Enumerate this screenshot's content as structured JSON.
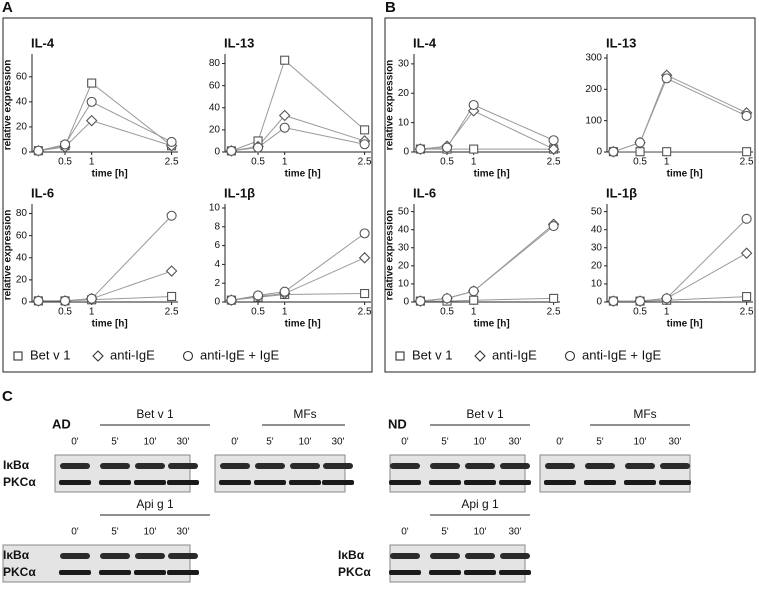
{
  "panels": {
    "labels": [
      "A",
      "B",
      "C"
    ]
  },
  "chart_data": [
    {
      "type": "line",
      "title": "IL-4",
      "ylabel": "relative expression",
      "xlabel": "time [h]",
      "x": [
        0,
        0.5,
        1,
        2.5
      ],
      "xlim": [
        -0.12,
        2.62
      ],
      "xticks": [
        0.5,
        1,
        2.5
      ],
      "ylim": [
        0,
        75
      ],
      "yticks": [
        0,
        20,
        40,
        60
      ],
      "series": [
        {
          "name": "Bet v 1",
          "marker": "square",
          "color": "#555555",
          "values": [
            1,
            5,
            55,
            5
          ]
        },
        {
          "name": "anti-IgE",
          "marker": "diamond",
          "color": "#555555",
          "values": [
            1,
            4,
            25,
            5
          ]
        },
        {
          "name": "anti-IgE + IgE",
          "marker": "circle",
          "color": "#555555",
          "values": [
            1,
            6,
            40,
            8
          ]
        }
      ]
    },
    {
      "type": "line",
      "title": "IL-13",
      "xlabel": "time [h]",
      "x": [
        0,
        0.5,
        1,
        2.5
      ],
      "xlim": [
        -0.12,
        2.62
      ],
      "xticks": [
        0.5,
        1,
        2.5
      ],
      "ylim": [
        0,
        85
      ],
      "yticks": [
        0,
        20,
        40,
        60,
        80
      ],
      "series": [
        {
          "name": "Bet v 1",
          "marker": "square",
          "color": "#555555",
          "values": [
            1,
            10,
            83,
            20
          ]
        },
        {
          "name": "anti-IgE",
          "marker": "diamond",
          "color": "#555555",
          "values": [
            1,
            5,
            33,
            10
          ]
        },
        {
          "name": "anti-IgE + IgE",
          "marker": "circle",
          "color": "#555555",
          "values": [
            1,
            4,
            22,
            7
          ]
        }
      ]
    },
    {
      "type": "line",
      "title": "IL-6",
      "ylabel": "relative expression",
      "xlabel": "time [h]",
      "x": [
        0,
        0.5,
        1,
        2.5
      ],
      "xlim": [
        -0.12,
        2.62
      ],
      "xticks": [
        0.5,
        1,
        2.5
      ],
      "ylim": [
        0,
        85
      ],
      "yticks": [
        0,
        20,
        40,
        60,
        80
      ],
      "series": [
        {
          "name": "Bet v 1",
          "marker": "square",
          "color": "#555555",
          "values": [
            1,
            1,
            2,
            5
          ]
        },
        {
          "name": "anti-IgE",
          "marker": "diamond",
          "color": "#555555",
          "values": [
            1,
            1,
            3,
            28
          ]
        },
        {
          "name": "anti-IgE + IgE",
          "marker": "circle",
          "color": "#555555",
          "values": [
            1,
            1,
            3,
            78
          ]
        }
      ]
    },
    {
      "type": "line",
      "title": "IL-1β",
      "xlabel": "time [h]",
      "x": [
        0,
        0.5,
        1,
        2.5
      ],
      "xlim": [
        -0.12,
        2.62
      ],
      "xticks": [
        0.5,
        1,
        2.5
      ],
      "ylim": [
        0,
        10
      ],
      "yticks": [
        0,
        2,
        4,
        6,
        8,
        10
      ],
      "series": [
        {
          "name": "Bet v 1",
          "marker": "square",
          "color": "#555555",
          "values": [
            0.2,
            0.5,
            0.8,
            0.9
          ]
        },
        {
          "name": "anti-IgE",
          "marker": "diamond",
          "color": "#555555",
          "values": [
            0.2,
            0.6,
            0.9,
            4.7
          ]
        },
        {
          "name": "anti-IgE + IgE",
          "marker": "circle",
          "color": "#555555",
          "values": [
            0.2,
            0.7,
            1.1,
            7.3
          ]
        }
      ]
    },
    {
      "type": "line",
      "title": "IL-4",
      "ylabel": "relative expression",
      "xlabel": "time [h]",
      "x": [
        0,
        0.5,
        1,
        2.5
      ],
      "xlim": [
        -0.12,
        2.62
      ],
      "xticks": [
        0.5,
        1,
        2.5
      ],
      "ylim": [
        0,
        32
      ],
      "yticks": [
        0,
        10,
        20,
        30
      ],
      "series": [
        {
          "name": "Bet v 1",
          "marker": "square",
          "color": "#555555",
          "values": [
            1,
            1,
            1,
            1
          ]
        },
        {
          "name": "anti-IgE",
          "marker": "diamond",
          "color": "#555555",
          "values": [
            1,
            2,
            14,
            1
          ]
        },
        {
          "name": "anti-IgE + IgE",
          "marker": "circle",
          "color": "#555555",
          "values": [
            1,
            1.5,
            16,
            4
          ]
        }
      ]
    },
    {
      "type": "line",
      "title": "IL-13",
      "xlabel": "time [h]",
      "x": [
        0,
        0.5,
        1,
        2.5
      ],
      "xlim": [
        -0.12,
        2.62
      ],
      "xticks": [
        0.5,
        1,
        2.5
      ],
      "ylim": [
        0,
        300
      ],
      "yticks": [
        0,
        100,
        200,
        300
      ],
      "series": [
        {
          "name": "Bet v 1",
          "marker": "square",
          "color": "#555555",
          "values": [
            1,
            1,
            1,
            1
          ]
        },
        {
          "name": "anti-IgE",
          "marker": "diamond",
          "color": "#555555",
          "values": [
            1,
            30,
            245,
            125
          ]
        },
        {
          "name": "anti-IgE + IgE",
          "marker": "circle",
          "color": "#555555",
          "values": [
            1,
            30,
            235,
            115
          ]
        }
      ]
    },
    {
      "type": "line",
      "title": "IL-6",
      "ylabel": "relative expression",
      "xlabel": "time [h]",
      "x": [
        0,
        0.5,
        1,
        2.5
      ],
      "xlim": [
        -0.12,
        2.62
      ],
      "xticks": [
        0.5,
        1,
        2.5
      ],
      "ylim": [
        0,
        52
      ],
      "yticks": [
        0,
        10,
        20,
        30,
        40,
        50
      ],
      "series": [
        {
          "name": "Bet v 1",
          "marker": "square",
          "color": "#555555",
          "values": [
            0.5,
            0.5,
            1,
            2
          ]
        },
        {
          "name": "anti-IgE",
          "marker": "diamond",
          "color": "#555555",
          "values": [
            0.5,
            2,
            6,
            43
          ]
        },
        {
          "name": "anti-IgE + IgE",
          "marker": "circle",
          "color": "#555555",
          "values": [
            0.5,
            2,
            6,
            42
          ]
        }
      ]
    },
    {
      "type": "line",
      "title": "IL-1β",
      "xlabel": "time [h]",
      "x": [
        0,
        0.5,
        1,
        2.5
      ],
      "xlim": [
        -0.12,
        2.62
      ],
      "xticks": [
        0.5,
        1,
        2.5
      ],
      "ylim": [
        0,
        52
      ],
      "yticks": [
        0,
        10,
        20,
        30,
        40,
        50
      ],
      "series": [
        {
          "name": "Bet v 1",
          "marker": "square",
          "color": "#555555",
          "values": [
            0.5,
            0.5,
            1,
            3
          ]
        },
        {
          "name": "anti-IgE",
          "marker": "diamond",
          "color": "#555555",
          "values": [
            0.5,
            0.5,
            2,
            27
          ]
        },
        {
          "name": "anti-IgE + IgE",
          "marker": "circle",
          "color": "#555555",
          "values": [
            0.5,
            0.5,
            2,
            46
          ]
        }
      ]
    }
  ],
  "blots": {
    "cohorts": [
      "AD",
      "ND"
    ],
    "lanes": [
      "0'",
      "5'",
      "10'",
      "30'"
    ],
    "stimuli": [
      "Bet v 1",
      "MFs",
      "Api g 1"
    ],
    "proteins": [
      "IκBα",
      "PKCα"
    ]
  }
}
